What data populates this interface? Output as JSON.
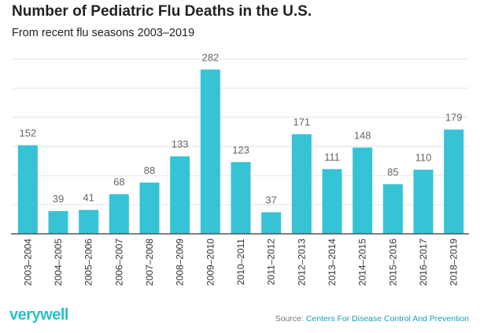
{
  "brand": "verywell",
  "source": {
    "prefix": "Source:",
    "org": "Centers For Disease Control And Prevention"
  },
  "colors": {
    "bar": "#35c3d5",
    "grid": "#e3e3e3",
    "axis": "#555555",
    "label": "#666666"
  },
  "chart_data": {
    "type": "bar",
    "title": "Number of Pediatric Flu Deaths in the U.S.",
    "subtitle": "From recent flu seasons 2003–2019",
    "xlabel": "",
    "ylabel": "",
    "ylim": [
      0,
      300
    ],
    "grid": true,
    "categories": [
      "2003–2004",
      "2004–2005",
      "2005–2006",
      "2006–2007",
      "2007–2008",
      "2008–2009",
      "2009–2010",
      "2010–2011",
      "2011–2012",
      "2012–2013",
      "2013–2014",
      "2014–2015",
      "2015–2016",
      "2016–2017",
      "2018–2019"
    ],
    "values": [
      152,
      39,
      41,
      68,
      88,
      133,
      282,
      123,
      37,
      171,
      111,
      148,
      85,
      110,
      179
    ]
  }
}
